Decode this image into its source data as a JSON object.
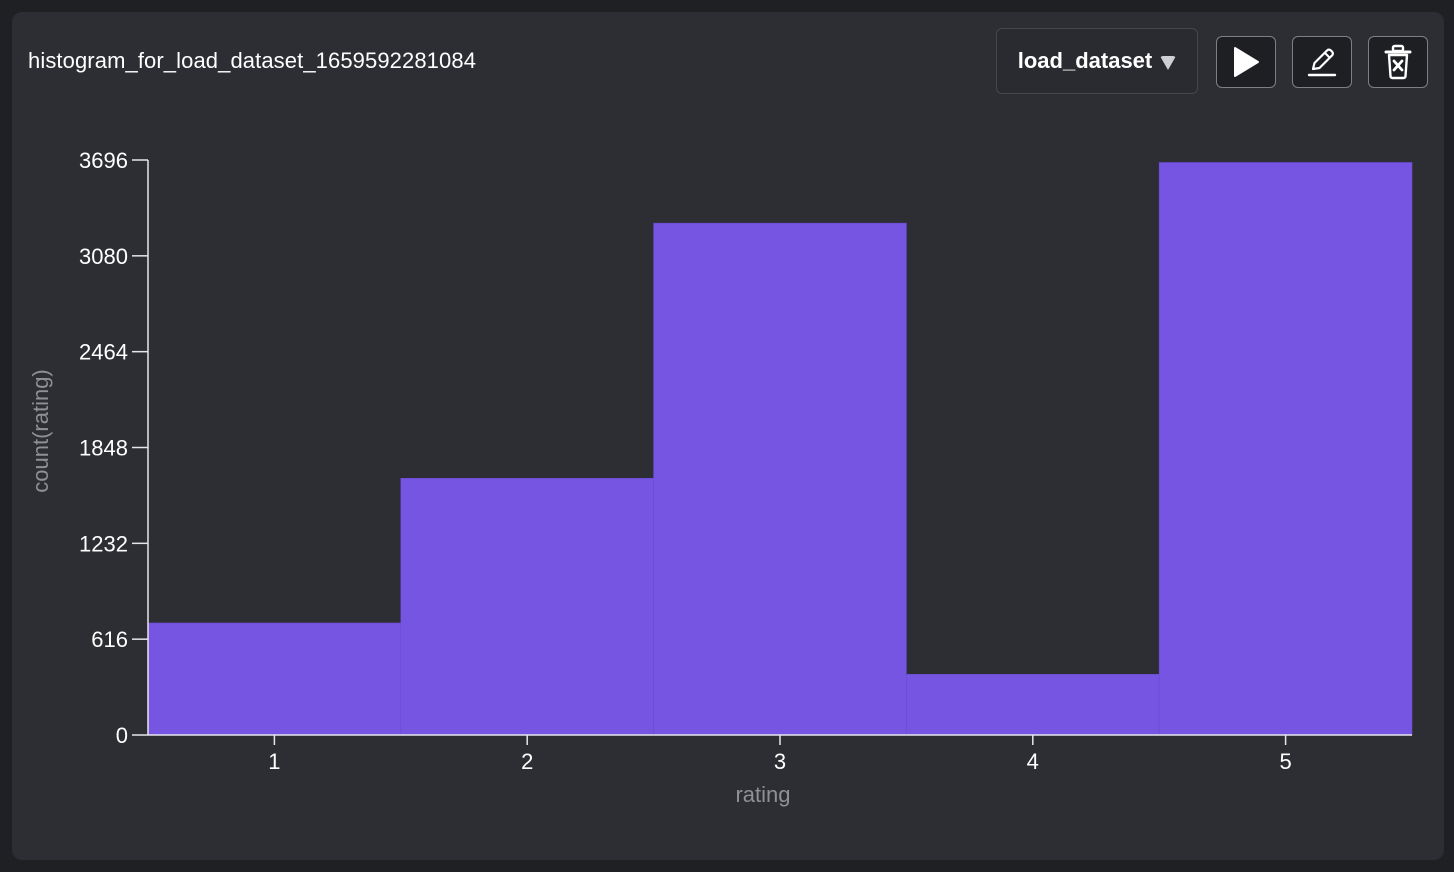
{
  "header": {
    "title": "histogram_for_load_dataset_1659592281084",
    "dataset_selector": "load_dataset"
  },
  "toolbar": {
    "run_icon": "play-icon",
    "edit_icon": "pencil-icon",
    "delete_icon": "trash-icon"
  },
  "colors": {
    "bar": "#7655e2",
    "background": "#2d2e33"
  },
  "chart_data": {
    "type": "bar",
    "categories": [
      "1",
      "2",
      "3",
      "4",
      "5"
    ],
    "values": [
      720,
      1650,
      3290,
      390,
      3680
    ],
    "xlabel": "rating",
    "ylabel": "count(rating)",
    "ylim": [
      0,
      3696
    ],
    "yticks": [
      0,
      616,
      1232,
      1848,
      2464,
      3080,
      3696
    ],
    "grid": false,
    "legend": "none"
  }
}
